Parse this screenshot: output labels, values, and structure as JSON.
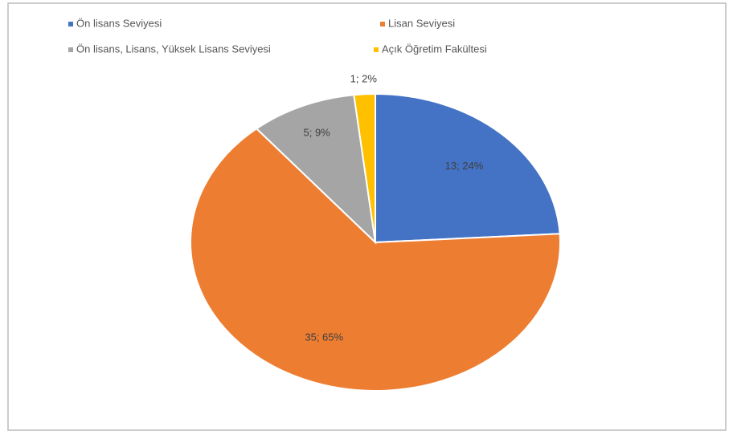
{
  "chart_data": {
    "type": "pie",
    "categories": [
      "Ön lisans Seviyesi",
      "Lisan Seviyesi",
      "Ön lisans, Lisans, Yüksek Lisans Seviyesi",
      "Açık Öğretim Fakültesi"
    ],
    "values": [
      13,
      35,
      5,
      1
    ],
    "value_labels": [
      "13; 24%",
      "35; 65%",
      "5; 9%",
      "1; 2%"
    ],
    "colors": [
      "#4472c4",
      "#ed7d31",
      "#a5a5a5",
      "#ffc000"
    ],
    "legend": "top"
  }
}
